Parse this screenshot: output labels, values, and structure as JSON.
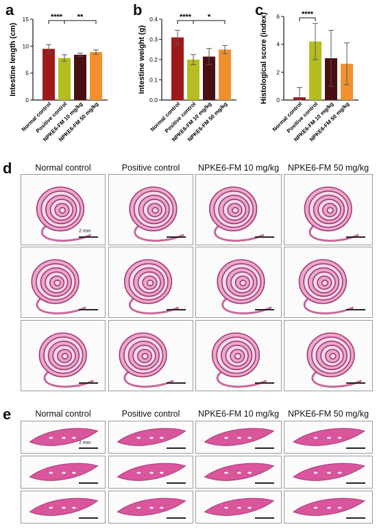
{
  "panels": {
    "a": "a",
    "b": "b",
    "c": "c",
    "d": "d",
    "e": "e"
  },
  "groups": [
    "Normal control",
    "Positive control",
    "NPKE6-FM 10 mg/kg",
    "NPKE6-FM 50 mg/kg"
  ],
  "bar_colors": [
    "#9e1a1a",
    "#b5bd1f",
    "#4a0f12",
    "#f0912e"
  ],
  "scale_bar_label": "2 mm",
  "chart_data": [
    {
      "id": "a",
      "type": "bar",
      "categories": [
        "Normal control",
        "Positive control",
        "NPKE6-FM 10 mg/kg",
        "NPKE6-FM 50 mg/kg"
      ],
      "values": [
        9.5,
        7.8,
        8.4,
        8.9
      ],
      "errors": [
        0.8,
        0.6,
        0.3,
        0.4
      ],
      "ylabel": "Intestine length (cm)",
      "ylim": [
        0,
        15
      ],
      "yticks": [
        0,
        5,
        10,
        15
      ],
      "significance": [
        {
          "from": 0,
          "to": 1,
          "label": "****"
        },
        {
          "from": 1,
          "to": 3,
          "label": "**"
        }
      ]
    },
    {
      "id": "b",
      "type": "bar",
      "categories": [
        "Normal control",
        "Positive control",
        "NPKE6-FM 10 mg/kg",
        "NPKE6-FM 50 mg/kg"
      ],
      "values": [
        0.31,
        0.2,
        0.215,
        0.25
      ],
      "errors": [
        0.035,
        0.025,
        0.04,
        0.02
      ],
      "ylabel": "Intestine weight (g)",
      "ylim": [
        0,
        0.4
      ],
      "yticks": [
        0.0,
        0.1,
        0.2,
        0.3,
        0.4
      ],
      "significance": [
        {
          "from": 0,
          "to": 1,
          "label": "****"
        },
        {
          "from": 1,
          "to": 3,
          "label": "*"
        }
      ]
    },
    {
      "id": "c",
      "type": "bar",
      "categories": [
        "Normal control",
        "Positive control",
        "NPKE6-FM 10 mg/kg",
        "NPKE6-FM 50 mg/kg"
      ],
      "values": [
        0.2,
        4.2,
        3.0,
        2.6
      ],
      "errors": [
        0.7,
        1.3,
        2.0,
        1.5
      ],
      "ylabel": "Histological score (index)",
      "ylim": [
        0,
        6
      ],
      "yticks": [
        0,
        2,
        4,
        6
      ],
      "significance": [
        {
          "from": 0,
          "to": 1,
          "label": "****"
        }
      ]
    }
  ]
}
